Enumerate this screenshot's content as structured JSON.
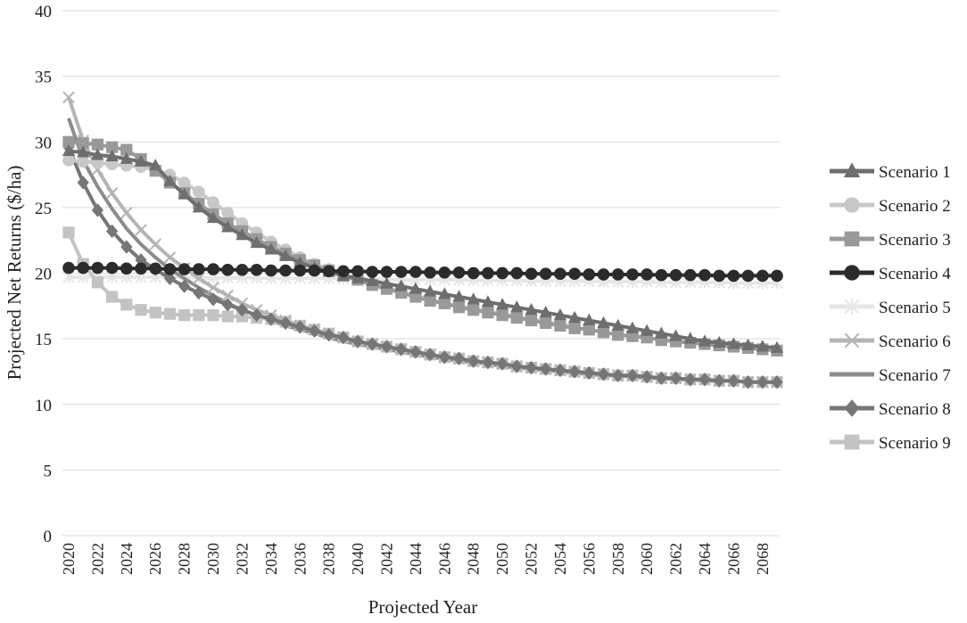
{
  "chart_data": {
    "type": "line",
    "title": "",
    "xlabel": "Projected Year",
    "ylabel": "Projected Net Returns ($/ha)",
    "ylim": [
      0,
      40
    ],
    "yticks": [
      0,
      5,
      10,
      15,
      20,
      25,
      30,
      35,
      40
    ],
    "xticks": [
      2020,
      2022,
      2024,
      2026,
      2028,
      2030,
      2032,
      2034,
      2036,
      2038,
      2040,
      2042,
      2044,
      2046,
      2048,
      2050,
      2052,
      2054,
      2056,
      2058,
      2060,
      2062,
      2064,
      2066,
      2068
    ],
    "grid": true,
    "legend_position": "right",
    "x": [
      2020,
      2021,
      2022,
      2023,
      2024,
      2025,
      2026,
      2027,
      2028,
      2029,
      2030,
      2031,
      2032,
      2033,
      2034,
      2035,
      2036,
      2037,
      2038,
      2039,
      2040,
      2041,
      2042,
      2043,
      2044,
      2045,
      2046,
      2047,
      2048,
      2049,
      2050,
      2051,
      2052,
      2053,
      2054,
      2055,
      2056,
      2057,
      2058,
      2059,
      2060,
      2061,
      2062,
      2063,
      2064,
      2065,
      2066,
      2067,
      2068,
      2069
    ],
    "series": [
      {
        "name": "Scenario 1",
        "color": "#6e6e6e",
        "marker": "triangle",
        "values": [
          29.3,
          29.2,
          29.0,
          28.9,
          28.7,
          28.5,
          28.2,
          27.0,
          26.0,
          25.0,
          24.2,
          23.5,
          22.9,
          22.3,
          21.8,
          21.3,
          20.8,
          20.4,
          20.1,
          19.8,
          19.6,
          19.4,
          19.2,
          19.0,
          18.8,
          18.6,
          18.4,
          18.2,
          18.0,
          17.8,
          17.6,
          17.4,
          17.2,
          17.0,
          16.8,
          16.6,
          16.4,
          16.2,
          16.0,
          15.8,
          15.6,
          15.4,
          15.2,
          15.0,
          14.8,
          14.7,
          14.6,
          14.5,
          14.4,
          14.3
        ]
      },
      {
        "name": "Scenario 2",
        "color": "#c8c8c8",
        "marker": "circle",
        "values": [
          28.6,
          28.5,
          28.4,
          28.3,
          28.2,
          28.1,
          27.9,
          27.5,
          26.9,
          26.2,
          25.4,
          24.6,
          23.8,
          23.1,
          22.4,
          21.8,
          21.2,
          20.7,
          20.3,
          19.9,
          19.5,
          19.2,
          18.9,
          18.6,
          18.3,
          18.0,
          17.7,
          17.5,
          17.3,
          17.1,
          16.9,
          16.7,
          16.5,
          16.3,
          16.1,
          15.9,
          15.7,
          15.5,
          15.3,
          15.2,
          15.1,
          14.9,
          14.8,
          14.7,
          14.6,
          14.5,
          14.4,
          14.3,
          14.2,
          14.1
        ]
      },
      {
        "name": "Scenario 3",
        "color": "#999999",
        "marker": "square",
        "values": [
          30.0,
          29.9,
          29.8,
          29.6,
          29.4,
          28.7,
          27.8,
          26.9,
          26.1,
          25.3,
          24.5,
          23.8,
          23.2,
          22.6,
          22.0,
          21.5,
          21.0,
          20.6,
          20.2,
          19.8,
          19.5,
          19.1,
          18.8,
          18.5,
          18.2,
          17.9,
          17.7,
          17.4,
          17.2,
          17.0,
          16.8,
          16.6,
          16.4,
          16.2,
          16.0,
          15.8,
          15.7,
          15.5,
          15.3,
          15.2,
          15.1,
          14.9,
          14.8,
          14.7,
          14.6,
          14.5,
          14.4,
          14.3,
          14.2,
          14.1
        ]
      },
      {
        "name": "Scenario 4",
        "color": "#2b2b2b",
        "marker": "circle",
        "values": [
          20.4,
          20.4,
          20.4,
          20.4,
          20.35,
          20.35,
          20.35,
          20.3,
          20.3,
          20.3,
          20.3,
          20.25,
          20.25,
          20.25,
          20.2,
          20.2,
          20.2,
          20.2,
          20.15,
          20.15,
          20.15,
          20.1,
          20.1,
          20.1,
          20.1,
          20.05,
          20.05,
          20.05,
          20.0,
          20.0,
          20.0,
          20.0,
          19.95,
          19.95,
          19.95,
          19.95,
          19.9,
          19.9,
          19.9,
          19.9,
          19.9,
          19.85,
          19.85,
          19.85,
          19.85,
          19.8,
          19.8,
          19.8,
          19.8,
          19.8
        ]
      },
      {
        "name": "Scenario 5",
        "color": "#e6e6e6",
        "marker": "star",
        "values": [
          19.7,
          19.7,
          19.7,
          19.7,
          19.7,
          19.7,
          19.7,
          19.7,
          19.7,
          19.65,
          19.65,
          19.65,
          19.65,
          19.65,
          19.6,
          19.6,
          19.6,
          19.6,
          19.6,
          19.55,
          19.55,
          19.55,
          19.55,
          19.5,
          19.5,
          19.5,
          19.5,
          19.5,
          19.45,
          19.45,
          19.45,
          19.45,
          19.4,
          19.4,
          19.4,
          19.4,
          19.4,
          19.35,
          19.35,
          19.35,
          19.35,
          19.3,
          19.3,
          19.3,
          19.3,
          19.3,
          19.25,
          19.25,
          19.25,
          19.25
        ]
      },
      {
        "name": "Scenario 6",
        "color": "#b4b4b4",
        "marker": "x",
        "values": [
          33.4,
          30.1,
          27.9,
          26.1,
          24.6,
          23.3,
          22.2,
          21.2,
          20.4,
          19.6,
          18.9,
          18.3,
          17.7,
          17.2,
          16.8,
          16.4,
          16.0,
          15.7,
          15.4,
          15.1,
          14.8,
          14.6,
          14.4,
          14.2,
          14.0,
          13.8,
          13.6,
          13.5,
          13.3,
          13.2,
          13.1,
          12.9,
          12.8,
          12.7,
          12.6,
          12.5,
          12.4,
          12.3,
          12.2,
          12.2,
          12.1,
          12.0,
          12.0,
          11.9,
          11.9,
          11.8,
          11.8,
          11.7,
          11.7,
          11.7
        ]
      },
      {
        "name": "Scenario 7",
        "color": "#8c8c8c",
        "marker": "none",
        "values": [
          31.8,
          28.6,
          26.6,
          24.9,
          23.4,
          22.2,
          21.2,
          20.3,
          19.6,
          18.9,
          18.3,
          17.7,
          17.2,
          16.8,
          16.4,
          16.0,
          15.7,
          15.4,
          15.1,
          14.8,
          14.6,
          14.4,
          14.2,
          14.0,
          13.8,
          13.6,
          13.5,
          13.3,
          13.2,
          13.1,
          12.9,
          12.8,
          12.7,
          12.6,
          12.5,
          12.4,
          12.3,
          12.2,
          12.2,
          12.1,
          12.0,
          12.0,
          11.9,
          11.9,
          11.8,
          11.8,
          11.8,
          11.7,
          11.7,
          11.7
        ]
      },
      {
        "name": "Scenario 8",
        "color": "#767676",
        "marker": "diamond",
        "values": [
          29.6,
          26.9,
          24.8,
          23.2,
          22.0,
          21.0,
          20.3,
          19.6,
          19.0,
          18.5,
          18.0,
          17.6,
          17.2,
          16.8,
          16.5,
          16.2,
          15.9,
          15.6,
          15.3,
          15.1,
          14.8,
          14.6,
          14.4,
          14.2,
          14.0,
          13.8,
          13.6,
          13.5,
          13.3,
          13.2,
          13.1,
          12.9,
          12.8,
          12.7,
          12.6,
          12.5,
          12.4,
          12.3,
          12.2,
          12.2,
          12.1,
          12.0,
          12.0,
          11.9,
          11.9,
          11.8,
          11.8,
          11.7,
          11.7,
          11.7
        ]
      },
      {
        "name": "Scenario 9",
        "color": "#c3c3c3",
        "marker": "square",
        "values": [
          23.1,
          20.7,
          19.3,
          18.2,
          17.6,
          17.2,
          17.0,
          16.9,
          16.8,
          16.8,
          16.8,
          16.7,
          16.7,
          16.6,
          16.5,
          16.3,
          16.0,
          15.7,
          15.4,
          15.1,
          14.8,
          14.6,
          14.4,
          14.2,
          14.0,
          13.8,
          13.6,
          13.5,
          13.3,
          13.2,
          13.1,
          12.9,
          12.8,
          12.7,
          12.6,
          12.5,
          12.4,
          12.3,
          12.2,
          12.2,
          12.1,
          12.0,
          12.0,
          11.9,
          11.9,
          11.8,
          11.8,
          11.7,
          11.7,
          11.7
        ]
      }
    ]
  }
}
